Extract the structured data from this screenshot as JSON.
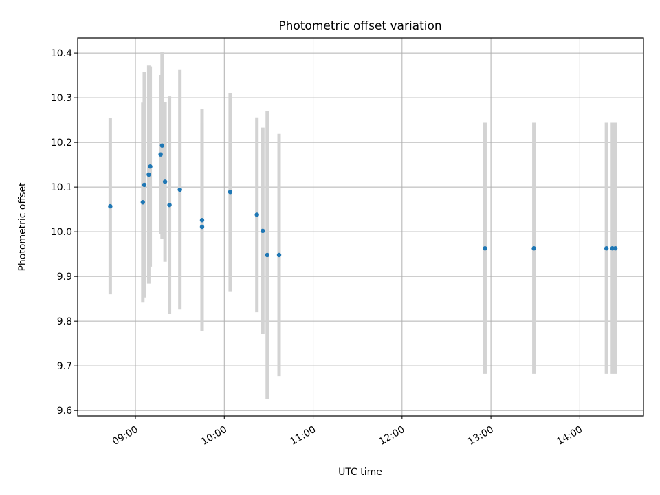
{
  "chart_data": {
    "type": "scatter",
    "title": "Photometric offset variation",
    "xlabel": "UTC time",
    "ylabel": "Photometric offset",
    "xlim": [
      "08:21",
      "14:43"
    ],
    "ylim": [
      9.588,
      10.434
    ],
    "x_ticks": [
      "09:00",
      "10:00",
      "11:00",
      "12:00",
      "13:00",
      "14:00"
    ],
    "y_ticks": [
      9.6,
      9.7,
      9.8,
      9.9,
      10.0,
      10.1,
      10.2,
      10.3,
      10.4
    ],
    "y_tick_labels": [
      "9.6",
      "9.7",
      "9.8",
      "9.9",
      "10.0",
      "10.1",
      "10.2",
      "10.3",
      "10.4"
    ],
    "grid": true,
    "marker_color": "#1f77b4",
    "errorbar_color": "#d3d3d3",
    "points": [
      {
        "t": "08:43",
        "y": 10.057,
        "err": 0.197
      },
      {
        "t": "09:05",
        "y": 10.066,
        "err": 0.223
      },
      {
        "t": "09:06",
        "y": 10.105,
        "err": 0.252
      },
      {
        "t": "09:09",
        "y": 10.128,
        "err": 0.244
      },
      {
        "t": "09:10",
        "y": 10.146,
        "err": 0.224
      },
      {
        "t": "09:17",
        "y": 10.173,
        "err": 0.178
      },
      {
        "t": "09:18",
        "y": 10.193,
        "err": 0.209
      },
      {
        "t": "09:20",
        "y": 10.112,
        "err": 0.179
      },
      {
        "t": "09:23",
        "y": 10.06,
        "err": 0.243
      },
      {
        "t": "09:30",
        "y": 10.094,
        "err": 0.268
      },
      {
        "t": "09:45",
        "y": 10.026,
        "err": 0.248
      },
      {
        "t": "09:45",
        "y": 10.011,
        "err": 0.233
      },
      {
        "t": "10:04",
        "y": 10.089,
        "err": 0.222
      },
      {
        "t": "10:22",
        "y": 10.038,
        "err": 0.218
      },
      {
        "t": "10:26",
        "y": 10.002,
        "err": 0.231
      },
      {
        "t": "10:29",
        "y": 9.948,
        "err": 0.322
      },
      {
        "t": "10:37",
        "y": 9.948,
        "err": 0.271
      },
      {
        "t": "12:56",
        "y": 9.963,
        "err": 0.281
      },
      {
        "t": "13:29",
        "y": 9.963,
        "err": 0.281
      },
      {
        "t": "14:18",
        "y": 9.963,
        "err": 0.281
      },
      {
        "t": "14:22",
        "y": 9.963,
        "err": 0.281
      },
      {
        "t": "14:24",
        "y": 9.963,
        "err": 0.281
      }
    ]
  }
}
